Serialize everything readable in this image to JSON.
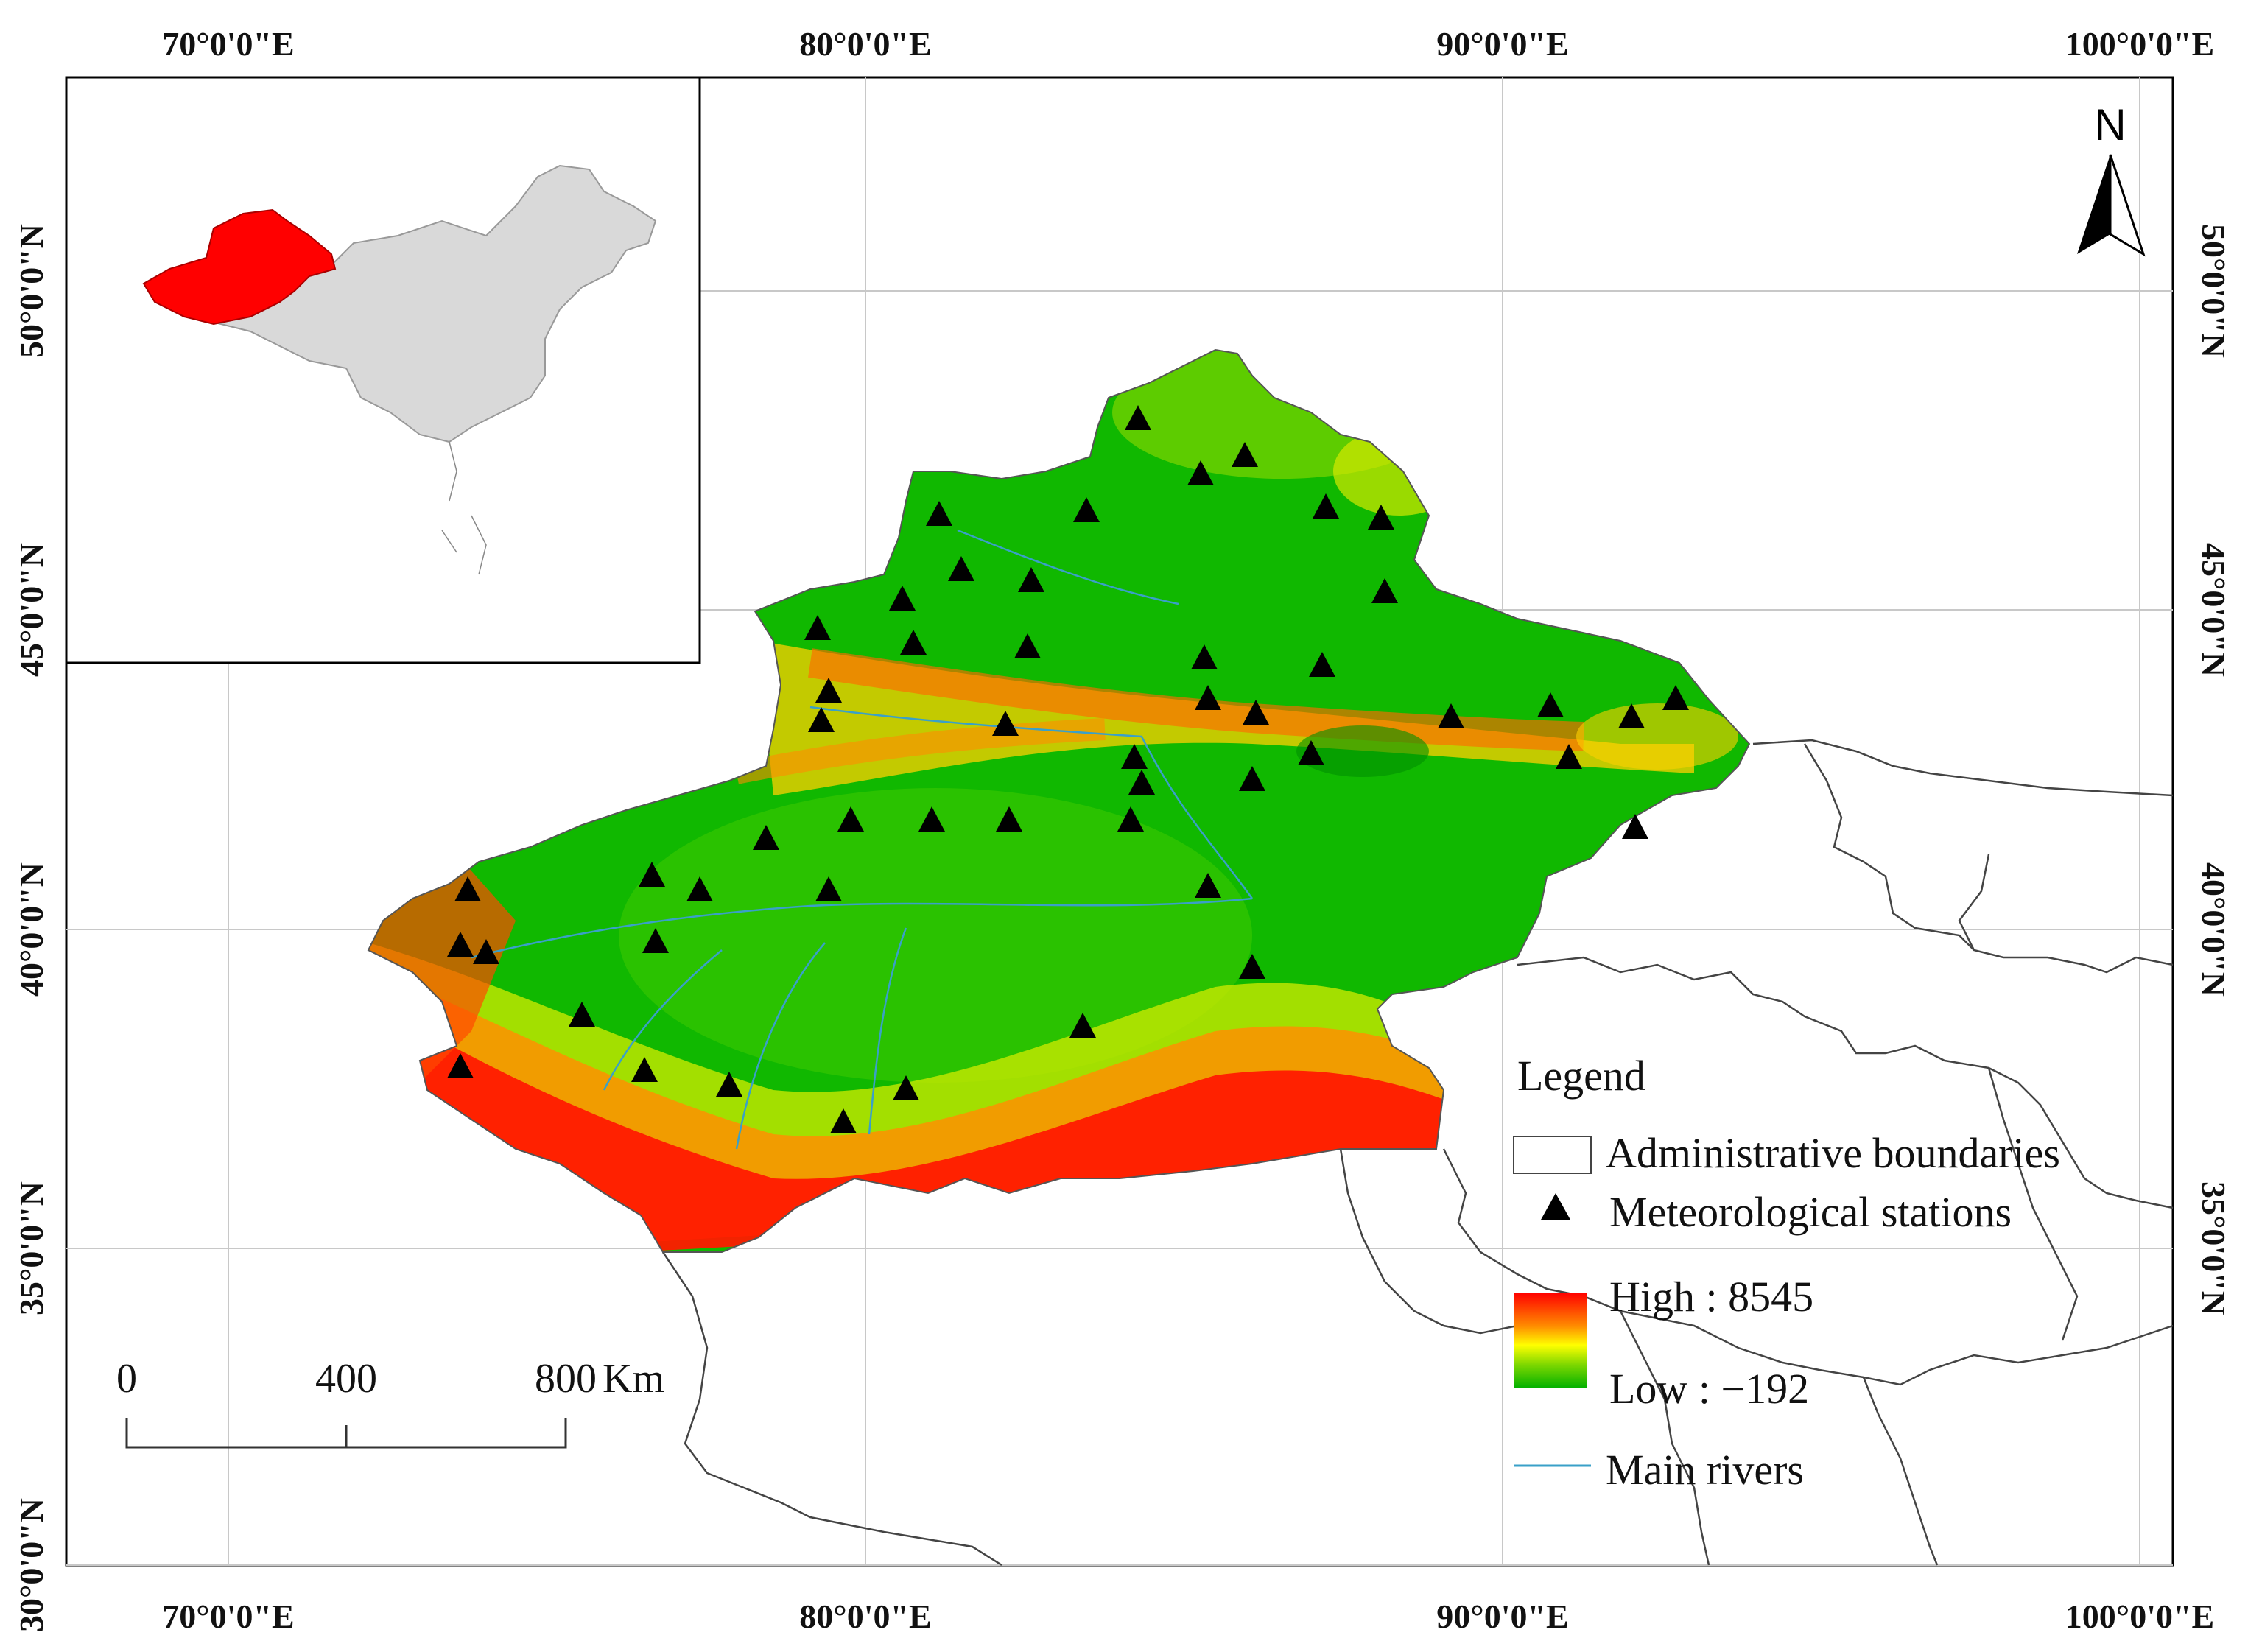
{
  "map": {
    "graticule": {
      "top_lon_labels": [
        "70°0'0\"E",
        "80°0'0\"E",
        "90°0'0\"E",
        "100°0'0\"E"
      ],
      "bottom_lon_labels": [
        "70°0'0\"E",
        "80°0'0\"E",
        "90°0'0\"E",
        "100°0'0\"E"
      ],
      "left_lat_labels": [
        "50°0'0\"N",
        "45°0'0\"N",
        "40°0'0\"N",
        "35°0'0\"N",
        "30°0'0\"N"
      ],
      "right_lat_labels": [
        "50°0'0\"N",
        "45°0'0\"N",
        "40°0'0\"N",
        "35°0'0\"N"
      ]
    },
    "north_arrow": {
      "label": "N",
      "icon": "north-arrow-icon"
    },
    "scale_bar": {
      "ticks": [
        "0",
        "400",
        "800"
      ],
      "unit": "Km"
    },
    "legend": {
      "title": "Legend",
      "items": [
        {
          "label": "Administrative boundaries",
          "symbol": "hollow-rectangle"
        },
        {
          "label": "Meteorological stations",
          "symbol": "black-triangle"
        },
        {
          "label": "Main rivers",
          "symbol": "blue-line"
        }
      ],
      "elevation": {
        "high_label": "High : 8545",
        "low_label": "Low : −192"
      }
    },
    "inset": {
      "description_icon": "china-locator-icon",
      "highlight_color": "#ff0000",
      "base_color": "#d9d9d9"
    },
    "colors": {
      "high": "#ff0000",
      "mid_high": "#ff7a00",
      "mid": "#ffff00",
      "mid_low": "#7fd400",
      "low": "#00b400",
      "river": "#3aa0c8",
      "boundary": "#333333"
    }
  }
}
